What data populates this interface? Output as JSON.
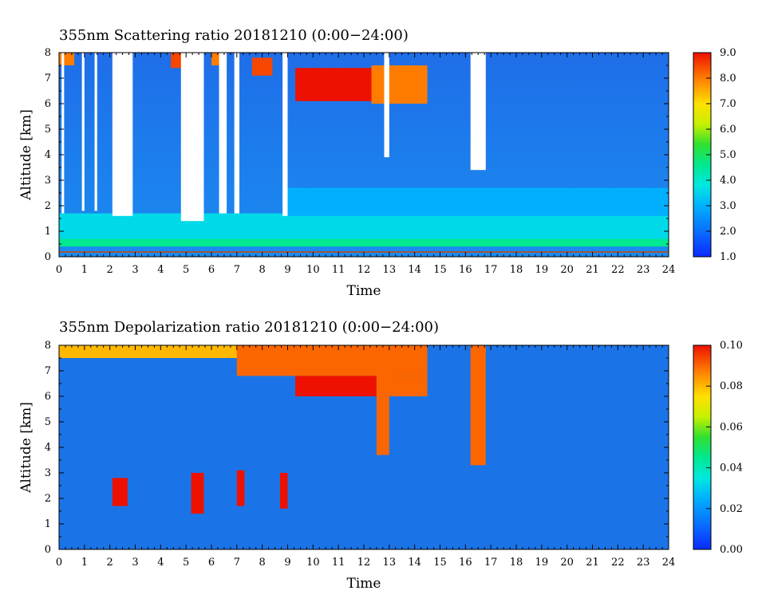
{
  "chart_data": [
    {
      "type": "heatmap",
      "title": "355nm Scattering ratio  20181210 (0:00−24:00)",
      "xlabel": "Time",
      "ylabel": "Altitude [km]",
      "xlim": [
        0,
        24
      ],
      "ylim": [
        0,
        8
      ],
      "x_ticks": [
        "0",
        "1",
        "2",
        "3",
        "4",
        "5",
        "6",
        "7",
        "8",
        "9",
        "10",
        "11",
        "12",
        "13",
        "14",
        "15",
        "16",
        "17",
        "18",
        "19",
        "20",
        "21",
        "22",
        "23",
        "24"
      ],
      "y_ticks": [
        "0",
        "1",
        "2",
        "3",
        "4",
        "5",
        "6",
        "7",
        "8"
      ],
      "colorbar": {
        "min": 1.0,
        "max": 9.0,
        "ticks": [
          "1.0",
          "2.0",
          "3.0",
          "4.0",
          "5.0",
          "6.0",
          "7.0",
          "8.0",
          "9.0"
        ]
      },
      "background_value": 2.5,
      "layers": [
        {
          "t": [
            0,
            24
          ],
          "alt": [
            0.55,
            1.7
          ],
          "value": 3.6
        },
        {
          "t": [
            0,
            24
          ],
          "alt": [
            0.4,
            0.7
          ],
          "value": 4.6
        },
        {
          "t": [
            9,
            24
          ],
          "alt": [
            1.6,
            2.7
          ],
          "value": 3.0
        }
      ],
      "clouds": [
        {
          "t": [
            0.0,
            0.6
          ],
          "alt": [
            7.5,
            8.0
          ],
          "value": 8.0
        },
        {
          "t": [
            4.4,
            5.0
          ],
          "alt": [
            7.4,
            8.0
          ],
          "value": 8.5
        },
        {
          "t": [
            6.0,
            6.6
          ],
          "alt": [
            7.5,
            8.0
          ],
          "value": 8.0
        },
        {
          "t": [
            7.6,
            8.4
          ],
          "alt": [
            7.1,
            7.8
          ],
          "value": 8.5
        },
        {
          "t": [
            9.3,
            12.3
          ],
          "alt": [
            6.1,
            7.4
          ],
          "value": 9.0
        },
        {
          "t": [
            12.3,
            14.5
          ],
          "alt": [
            6.0,
            7.5
          ],
          "value": 8.0
        }
      ],
      "no_data_columns": [
        {
          "t": [
            0.1,
            0.2
          ],
          "alt_min": 1.7
        },
        {
          "t": [
            0.9,
            1.0
          ],
          "alt_min": 1.8
        },
        {
          "t": [
            1.4,
            1.5
          ],
          "alt_min": 1.8
        },
        {
          "t": [
            2.1,
            2.9
          ],
          "alt_min": 1.6
        },
        {
          "t": [
            4.8,
            5.7
          ],
          "alt_min": 1.4
        },
        {
          "t": [
            6.3,
            6.6
          ],
          "alt_min": 1.7
        },
        {
          "t": [
            6.9,
            7.1
          ],
          "alt_min": 1.7
        },
        {
          "t": [
            8.8,
            9.0
          ],
          "alt_min": 1.6
        },
        {
          "t": [
            12.8,
            13.0
          ],
          "alt_min": 3.9
        },
        {
          "t": [
            16.2,
            16.8
          ],
          "alt_min": 3.4
        }
      ]
    },
    {
      "type": "heatmap",
      "title": "355nm Depolarization ratio  20181210 (0:00−24:00)",
      "xlabel": "Time",
      "ylabel": "Altitude [km]",
      "xlim": [
        0,
        24
      ],
      "ylim": [
        0,
        8
      ],
      "x_ticks": [
        "0",
        "1",
        "2",
        "3",
        "4",
        "5",
        "6",
        "7",
        "8",
        "9",
        "10",
        "11",
        "12",
        "13",
        "14",
        "15",
        "16",
        "17",
        "18",
        "19",
        "20",
        "21",
        "22",
        "23",
        "24"
      ],
      "y_ticks": [
        "0",
        "1",
        "2",
        "3",
        "4",
        "5",
        "6",
        "7",
        "8"
      ],
      "colorbar": {
        "min": 0.0,
        "max": 0.1,
        "ticks": [
          "0.00",
          "0.02",
          "0.04",
          "0.06",
          "0.08",
          "0.10"
        ]
      },
      "background_value": 0.01,
      "features": [
        {
          "t": [
            0.0,
            9.0
          ],
          "alt": [
            7.5,
            8.0
          ],
          "value": 0.08
        },
        {
          "t": [
            7.0,
            14.5
          ],
          "alt": [
            6.8,
            8.0
          ],
          "value": 0.09
        },
        {
          "t": [
            9.3,
            12.5
          ],
          "alt": [
            6.0,
            6.8
          ],
          "value": 0.1
        },
        {
          "t": [
            12.5,
            14.5
          ],
          "alt": [
            6.0,
            6.8
          ],
          "value": 0.09
        },
        {
          "t": [
            2.1,
            2.7
          ],
          "alt": [
            1.7,
            2.8
          ],
          "value": 0.1
        },
        {
          "t": [
            5.2,
            5.7
          ],
          "alt": [
            1.4,
            3.0
          ],
          "value": 0.1
        },
        {
          "t": [
            7.0,
            7.3
          ],
          "alt": [
            1.7,
            3.1
          ],
          "value": 0.1
        },
        {
          "t": [
            8.7,
            9.0
          ],
          "alt": [
            1.6,
            3.0
          ],
          "value": 0.1
        },
        {
          "t": [
            12.5,
            13.0
          ],
          "alt": [
            3.7,
            8.0
          ],
          "value": 0.09
        },
        {
          "t": [
            16.2,
            16.8
          ],
          "alt": [
            3.3,
            8.0
          ],
          "value": 0.09
        }
      ]
    }
  ]
}
